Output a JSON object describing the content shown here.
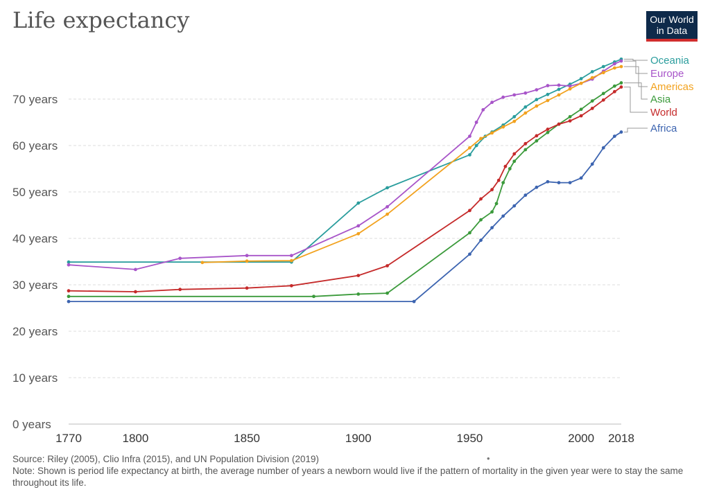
{
  "title": "Life expectancy",
  "logo": {
    "line1": "Our World",
    "line2": "in Data"
  },
  "footer": {
    "source": "Source: Riley (2005), Clio Infra (2015), and UN Population Division (2019)",
    "note": "Note: Shown is period life expectancy at birth, the average number of years a newborn would live if the pattern of mortality in the given year were to stay the same throughout its life."
  },
  "chart_data": {
    "type": "line",
    "title": "Life expectancy",
    "xlabel": "",
    "ylabel": "",
    "xlim": [
      1770,
      2018
    ],
    "ylim": [
      0,
      80
    ],
    "grid": true,
    "x_ticks": [
      1770,
      1800,
      1850,
      1900,
      1950,
      2000,
      2018
    ],
    "y_ticks": [
      {
        "value": 0,
        "label": "0 years"
      },
      {
        "value": 10,
        "label": "10 years"
      },
      {
        "value": 20,
        "label": "20 years"
      },
      {
        "value": 30,
        "label": "30 years"
      },
      {
        "value": 40,
        "label": "40 years"
      },
      {
        "value": 50,
        "label": "50 years"
      },
      {
        "value": 60,
        "label": "60 years"
      },
      {
        "value": 70,
        "label": "70 years"
      }
    ],
    "series": [
      {
        "name": "Oceania",
        "color": "#2a9d9d",
        "points": [
          [
            1770,
            34.9
          ],
          [
            1870,
            34.9
          ],
          [
            1900,
            47.6
          ],
          [
            1913,
            50.9
          ],
          [
            1950,
            58.0
          ],
          [
            1953,
            60.0
          ],
          [
            1957,
            62.0
          ],
          [
            1960,
            62.9
          ],
          [
            1965,
            64.4
          ],
          [
            1970,
            66.2
          ],
          [
            1975,
            68.3
          ],
          [
            1980,
            69.9
          ],
          [
            1985,
            71.0
          ],
          [
            1990,
            72.1
          ],
          [
            1995,
            73.2
          ],
          [
            2000,
            74.4
          ],
          [
            2005,
            75.9
          ],
          [
            2010,
            77.0
          ],
          [
            2015,
            78.0
          ],
          [
            2018,
            78.6
          ]
        ]
      },
      {
        "name": "Europe",
        "color": "#a855c9",
        "points": [
          [
            1770,
            34.3
          ],
          [
            1800,
            33.3
          ],
          [
            1820,
            35.7
          ],
          [
            1850,
            36.3
          ],
          [
            1870,
            36.3
          ],
          [
            1900,
            42.7
          ],
          [
            1913,
            46.8
          ],
          [
            1950,
            62.0
          ],
          [
            1953,
            65.0
          ],
          [
            1956,
            67.7
          ],
          [
            1960,
            69.3
          ],
          [
            1965,
            70.4
          ],
          [
            1970,
            70.9
          ],
          [
            1975,
            71.3
          ],
          [
            1980,
            72.0
          ],
          [
            1985,
            72.9
          ],
          [
            1990,
            73.0
          ],
          [
            1995,
            72.8
          ],
          [
            2000,
            73.4
          ],
          [
            2005,
            74.3
          ],
          [
            2010,
            76.0
          ],
          [
            2015,
            77.6
          ],
          [
            2018,
            78.2
          ]
        ]
      },
      {
        "name": "Americas",
        "color": "#f2a21e",
        "points": [
          [
            1830,
            34.8
          ],
          [
            1850,
            35.1
          ],
          [
            1870,
            35.2
          ],
          [
            1900,
            41.0
          ],
          [
            1913,
            45.2
          ],
          [
            1950,
            59.5
          ],
          [
            1955,
            61.5
          ],
          [
            1960,
            62.7
          ],
          [
            1965,
            64.0
          ],
          [
            1970,
            65.2
          ],
          [
            1975,
            67.0
          ],
          [
            1980,
            68.5
          ],
          [
            1985,
            69.7
          ],
          [
            1990,
            70.9
          ],
          [
            1995,
            72.2
          ],
          [
            2000,
            73.4
          ],
          [
            2005,
            74.6
          ],
          [
            2010,
            75.7
          ],
          [
            2015,
            76.7
          ],
          [
            2018,
            77.0
          ]
        ]
      },
      {
        "name": "Asia",
        "color": "#3b9a3b",
        "points": [
          [
            1770,
            27.5
          ],
          [
            1880,
            27.5
          ],
          [
            1900,
            28.0
          ],
          [
            1913,
            28.2
          ],
          [
            1950,
            41.2
          ],
          [
            1955,
            44.0
          ],
          [
            1960,
            45.7
          ],
          [
            1962,
            47.5
          ],
          [
            1965,
            52.0
          ],
          [
            1968,
            55.0
          ],
          [
            1970,
            56.6
          ],
          [
            1975,
            59.1
          ],
          [
            1980,
            61.0
          ],
          [
            1985,
            62.8
          ],
          [
            1990,
            64.6
          ],
          [
            1995,
            66.2
          ],
          [
            2000,
            67.8
          ],
          [
            2005,
            69.6
          ],
          [
            2010,
            71.2
          ],
          [
            2015,
            72.8
          ],
          [
            2018,
            73.5
          ]
        ]
      },
      {
        "name": "World",
        "color": "#c52a2a",
        "points": [
          [
            1770,
            28.7
          ],
          [
            1800,
            28.5
          ],
          [
            1820,
            29.0
          ],
          [
            1850,
            29.3
          ],
          [
            1870,
            29.8
          ],
          [
            1900,
            32.0
          ],
          [
            1913,
            34.1
          ],
          [
            1950,
            46.0
          ],
          [
            1955,
            48.5
          ],
          [
            1960,
            50.5
          ],
          [
            1963,
            52.5
          ],
          [
            1966,
            55.5
          ],
          [
            1970,
            58.2
          ],
          [
            1975,
            60.4
          ],
          [
            1980,
            62.1
          ],
          [
            1985,
            63.5
          ],
          [
            1990,
            64.6
          ],
          [
            1995,
            65.3
          ],
          [
            2000,
            66.4
          ],
          [
            2005,
            68.0
          ],
          [
            2010,
            69.8
          ],
          [
            2015,
            71.6
          ],
          [
            2018,
            72.6
          ]
        ]
      },
      {
        "name": "Africa",
        "color": "#3c64b0",
        "points": [
          [
            1770,
            26.4
          ],
          [
            1925,
            26.4
          ],
          [
            1950,
            36.6
          ],
          [
            1955,
            39.6
          ],
          [
            1960,
            42.3
          ],
          [
            1965,
            44.8
          ],
          [
            1970,
            47.0
          ],
          [
            1975,
            49.3
          ],
          [
            1980,
            51.0
          ],
          [
            1985,
            52.2
          ],
          [
            1990,
            52.0
          ],
          [
            1995,
            52.0
          ],
          [
            2000,
            53.0
          ],
          [
            2005,
            56.0
          ],
          [
            2010,
            59.5
          ],
          [
            2015,
            62.0
          ],
          [
            2018,
            62.9
          ]
        ]
      }
    ]
  }
}
